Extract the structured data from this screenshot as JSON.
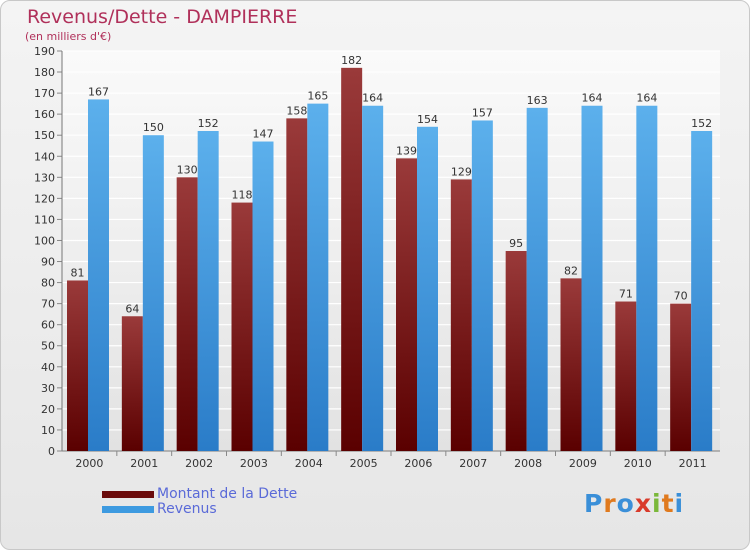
{
  "header": {
    "title": "Revenus/Dette - DAMPIERRE",
    "subtitle": "(en milliers d'€)"
  },
  "legend": {
    "items": [
      {
        "label": "Montant de la Dette",
        "color": "#7a1010"
      },
      {
        "label": "Revenus",
        "color": "#3d9ae0"
      }
    ]
  },
  "logo": {
    "text": "Proxiti"
  },
  "chart_data": {
    "type": "bar",
    "categories": [
      "2000",
      "2001",
      "2002",
      "2003",
      "2004",
      "2005",
      "2006",
      "2007",
      "2008",
      "2009",
      "2010",
      "2011"
    ],
    "series": [
      {
        "name": "Montant de la Dette",
        "values": [
          81,
          64,
          130,
          118,
          158,
          182,
          139,
          129,
          95,
          82,
          71,
          70
        ]
      },
      {
        "name": "Revenus",
        "values": [
          167,
          150,
          152,
          147,
          165,
          164,
          154,
          157,
          163,
          164,
          164,
          152
        ]
      }
    ],
    "title": "Revenus/Dette - DAMPIERRE",
    "subtitle": "(en milliers d'€)",
    "ylim": [
      0,
      190
    ],
    "ytick_step": 10,
    "grid": true,
    "legend_position": "bottom-left"
  }
}
